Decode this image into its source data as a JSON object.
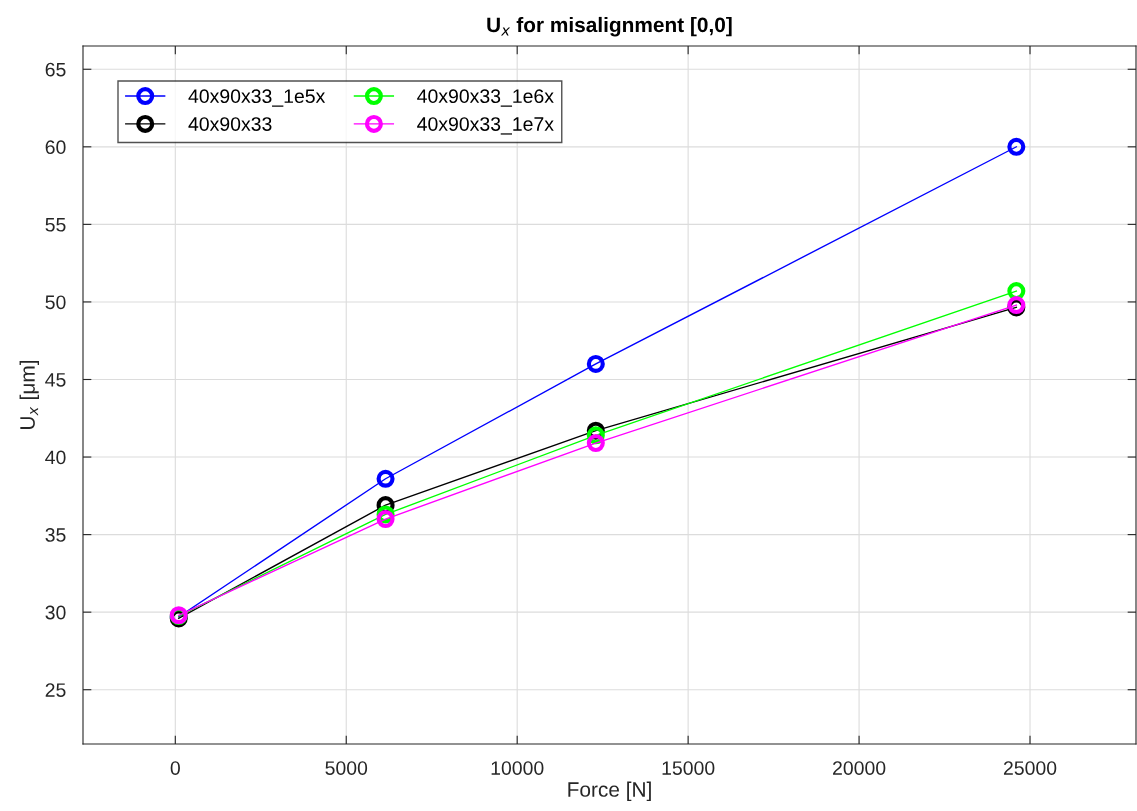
{
  "chart_data": {
    "type": "line",
    "title": "U$_{x}$ for misalignment [0,0]",
    "xlabel": "Force [N]",
    "ylabel": "U$_{x}$ [μm]",
    "x": [
      100,
      6150,
      12300,
      24600
    ],
    "series": [
      {
        "name": "40x90x33_1e5x",
        "color": "#0000ff",
        "values": [
          29.7,
          38.6,
          46.0,
          60.0
        ]
      },
      {
        "name": "40x90x33",
        "color": "#000000",
        "values": [
          29.6,
          36.9,
          41.7,
          49.65
        ]
      },
      {
        "name": "40x90x33_1e6x",
        "color": "#00ff00",
        "values": [
          29.75,
          36.3,
          41.4,
          50.7
        ]
      },
      {
        "name": "40x90x33_1e7x",
        "color": "#ff00ff",
        "values": [
          29.8,
          36.0,
          40.9,
          49.8
        ]
      }
    ],
    "xlim": [
      -2700,
      28100
    ],
    "xticks": [
      0,
      5000,
      10000,
      15000,
      20000,
      25000
    ],
    "ylim": [
      21.5,
      66.5
    ],
    "yticks": [
      25,
      30,
      35,
      40,
      45,
      50,
      55,
      60,
      65
    ],
    "grid": true,
    "legend": "top left",
    "marker": "circle",
    "line_style": "solid"
  }
}
